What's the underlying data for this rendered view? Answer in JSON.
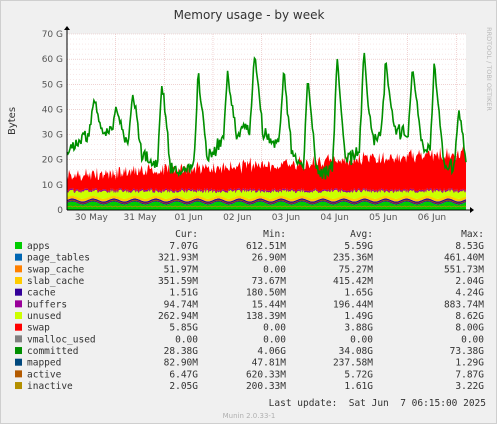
{
  "chart_data": {
    "type": "area",
    "title": "Memory usage - by week",
    "ylabel": "Bytes",
    "xlabel": "",
    "ylim": [
      0,
      70
    ],
    "y_unit": "G",
    "y_ticks": [
      0,
      10,
      20,
      30,
      40,
      50,
      60,
      70
    ],
    "y_tick_labels": [
      "0",
      "10 G",
      "20 G",
      "30 G",
      "40 G",
      "50 G",
      "60 G",
      "70 G"
    ],
    "x_tick_labels": [
      "30 May",
      "31 May",
      "01 Jun",
      "02 Jun",
      "03 Jun",
      "04 Jun",
      "05 Jun",
      "06 Jun"
    ],
    "x_tick_positions_days": [
      0.5,
      1.5,
      2.5,
      3.5,
      4.5,
      5.5,
      6.5,
      7.5
    ],
    "x_range_days": [
      0,
      8.2
    ],
    "grid": true,
    "legend_position": "bottom",
    "side_label": "RRDTOOL / TOBI OETIKER",
    "column_headers": [
      "Cur:",
      "Min:",
      "Avg:",
      "Max:"
    ],
    "series": [
      {
        "name": "apps",
        "color": "#00cc00",
        "cur": "7.07G",
        "min": "612.51M",
        "avg": "5.59G",
        "max": "8.53G"
      },
      {
        "name": "page_tables",
        "color": "#0066b3",
        "cur": "321.93M",
        "min": "26.90M",
        "avg": "235.36M",
        "max": "461.40M"
      },
      {
        "name": "swap_cache",
        "color": "#ff8000",
        "cur": "51.97M",
        "min": "0.00",
        "avg": "75.27M",
        "max": "551.73M"
      },
      {
        "name": "slab_cache",
        "color": "#ffcc00",
        "cur": "351.59M",
        "min": "73.67M",
        "avg": "415.42M",
        "max": "2.04G"
      },
      {
        "name": "cache",
        "color": "#330099",
        "cur": "1.51G",
        "min": "180.50M",
        "avg": "1.65G",
        "max": "4.24G"
      },
      {
        "name": "buffers",
        "color": "#990099",
        "cur": "94.74M",
        "min": "15.44M",
        "avg": "196.44M",
        "max": "883.74M"
      },
      {
        "name": "unused",
        "color": "#ccff00",
        "cur": "262.94M",
        "min": "138.39M",
        "avg": "1.49G",
        "max": "8.62G"
      },
      {
        "name": "swap",
        "color": "#ff0000",
        "cur": "5.85G",
        "min": "0.00",
        "avg": "3.88G",
        "max": "8.00G"
      },
      {
        "name": "vmalloc_used",
        "color": "#808080",
        "cur": "0.00",
        "min": "0.00",
        "avg": "0.00",
        "max": "0.00"
      },
      {
        "name": "committed",
        "color": "#008f00",
        "cur": "28.38G",
        "min": "4.06G",
        "avg": "34.08G",
        "max": "73.38G"
      },
      {
        "name": "mapped",
        "color": "#00487d",
        "cur": "82.90M",
        "min": "47.81M",
        "avg": "237.58M",
        "max": "1.29G"
      },
      {
        "name": "active",
        "color": "#b35a00",
        "cur": "6.47G",
        "min": "620.33M",
        "avg": "5.72G",
        "max": "7.87G"
      },
      {
        "name": "inactive",
        "color": "#b38f00",
        "cur": "2.05G",
        "min": "200.33M",
        "avg": "1.61G",
        "max": "3.22G"
      }
    ],
    "last_update": "Last update:  Sat Jun  7 06:15:00 2025",
    "footer": "Munin 2.0.33-1"
  }
}
